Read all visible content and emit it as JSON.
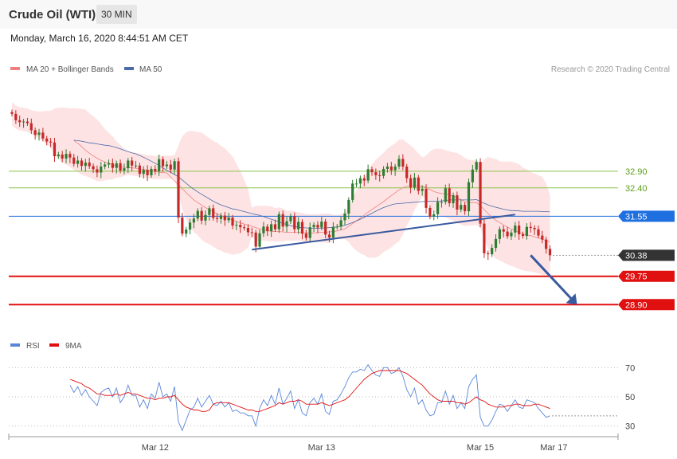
{
  "header": {
    "title": "Crude Oil (WTI)",
    "interval": "30 MIN"
  },
  "datetime": "Monday, March 16, 2020 8:44:51 AM CET",
  "legend": {
    "bollinger": "MA 20 + Bollinger Bands",
    "ma50": "MA 50",
    "copyright": "Research © 2020 Trading Central",
    "rsi": "RSI",
    "rsi_ma": "9MA"
  },
  "colors": {
    "up": "#2e7d32",
    "down": "#c62828",
    "band_fill": "#fde3e3",
    "ma20": "#f08080",
    "ma50": "#4a6aa8",
    "trendline": "#3a5aa0",
    "resistance": "#8bc34a",
    "pivot": "#1e6fe0",
    "support": "#e01010",
    "rsi": "#5a86d8",
    "rsi_ma": "#e01010",
    "current": "#333333"
  },
  "levels": [
    {
      "label": "32.90",
      "value": 32.9,
      "kind": "resistance"
    },
    {
      "label": "32.40",
      "value": 32.4,
      "kind": "resistance"
    },
    {
      "label": "31.55",
      "value": 31.55,
      "kind": "pivot"
    },
    {
      "label": "30.38",
      "value": 30.38,
      "kind": "current"
    },
    {
      "label": "29.75",
      "value": 29.75,
      "kind": "support"
    },
    {
      "label": "28.90",
      "value": 28.9,
      "kind": "support"
    }
  ],
  "xaxis": {
    "labels": [
      {
        "label": "Mar 12",
        "bar": 37
      },
      {
        "label": "Mar 13",
        "bar": 80
      },
      {
        "label": "Mar 15",
        "bar": 121
      },
      {
        "label": "Mar 17",
        "bar": 140
      }
    ]
  },
  "rsi_axis": {
    "ticks": [
      {
        "label": "70",
        "value": 70
      },
      {
        "label": "50",
        "value": 50
      },
      {
        "label": "30",
        "value": 30
      }
    ]
  },
  "chart_data": {
    "type": "candlestick",
    "instrument": "Crude Oil (WTI)",
    "timeframe": "30 MIN",
    "price_range": [
      28.5,
      35.0
    ],
    "close": [
      34.62,
      34.43,
      34.37,
      34.39,
      34.34,
      34.13,
      33.99,
      34.06,
      33.88,
      33.79,
      33.76,
      33.35,
      33.4,
      33.28,
      33.42,
      33.31,
      33.12,
      33.22,
      33.06,
      33.16,
      33.05,
      32.96,
      32.86,
      33.04,
      33.1,
      33.14,
      33.0,
      33.14,
      32.92,
      32.99,
      33.22,
      33.07,
      33.07,
      32.82,
      32.94,
      32.78,
      32.97,
      32.9,
      33.26,
      33.05,
      33.1,
      32.95,
      33.2,
      31.51,
      31.03,
      31.15,
      31.36,
      31.48,
      31.71,
      31.42,
      31.59,
      31.79,
      31.5,
      31.47,
      31.57,
      31.43,
      31.51,
      31.27,
      31.29,
      31.22,
      31.2,
      31.07,
      31.06,
      30.64,
      31.04,
      31.24,
      31.1,
      31.31,
      31.16,
      31.61,
      31.24,
      31.4,
      31.55,
      31.16,
      31.38,
      31.03,
      30.9,
      31.22,
      31.29,
      31.21,
      31.39,
      31.0,
      30.91,
      31.23,
      31.24,
      31.43,
      31.63,
      32.04,
      32.53,
      32.53,
      32.69,
      32.62,
      32.96,
      32.87,
      32.78,
      32.76,
      32.97,
      33.04,
      32.93,
      33.04,
      33.27,
      33.04,
      32.69,
      32.41,
      32.71,
      32.31,
      32.37,
      31.8,
      31.54,
      31.61,
      31.98,
      31.98,
      32.39,
      31.94,
      32.18,
      31.75,
      31.89,
      31.7,
      32.57,
      32.95,
      33.18,
      31.33,
      30.44,
      30.41,
      30.6,
      30.87,
      31.16,
      31.09,
      30.95,
      31.06,
      31.27,
      31.01,
      30.96,
      31.23,
      31.2,
      31.16,
      30.97,
      30.85,
      30.57,
      30.38
    ],
    "ma50_values": [
      null,
      null,
      null,
      null,
      null,
      null,
      null,
      null,
      null,
      null,
      null,
      null,
      null,
      null,
      null,
      null,
      33.83,
      33.82,
      33.8,
      33.78,
      33.75,
      33.74,
      33.72,
      33.7,
      33.68,
      33.67,
      33.64,
      33.61,
      33.57,
      33.53,
      33.49,
      33.45,
      33.42,
      33.37,
      33.32,
      33.26,
      33.2,
      33.14,
      33.07,
      33.0,
      32.93,
      32.87,
      32.8,
      32.73,
      32.64,
      32.54,
      32.44,
      32.36,
      32.28,
      32.21,
      32.14,
      32.07,
      32.0,
      31.94,
      31.89,
      31.85,
      31.81,
      31.77,
      31.75,
      31.72,
      31.69,
      31.66,
      31.63,
      31.6,
      31.58,
      31.54,
      31.5,
      31.46,
      31.42,
      31.38,
      31.34,
      31.3,
      31.27,
      31.24,
      31.22,
      31.21,
      31.2,
      31.19,
      31.19,
      31.19,
      31.19,
      31.2,
      31.21,
      31.22,
      31.23,
      31.25,
      31.28,
      31.32,
      31.36,
      31.41,
      31.46,
      31.52,
      31.58,
      31.64,
      31.7,
      31.76,
      31.81,
      31.85,
      31.89,
      31.92,
      31.93,
      31.94,
      31.95,
      31.96,
      31.97,
      31.98,
      31.99,
      32.0,
      32.0,
      32.0,
      32.0,
      32.01,
      32.02,
      32.04,
      32.04,
      32.04,
      32.04,
      32.04,
      32.04,
      32.04,
      32.05,
      31.98,
      31.94,
      31.89,
      31.85,
      31.82,
      31.79,
      31.76,
      31.74,
      31.72,
      31.72,
      31.71,
      31.7,
      31.7,
      31.7,
      31.7,
      31.7,
      31.69,
      31.69,
      31.68
    ],
    "ma20_values": [
      null,
      null,
      null,
      null,
      null,
      null,
      null,
      null,
      null,
      null,
      null,
      null,
      null,
      null,
      null,
      null,
      33.82,
      33.74,
      33.64,
      33.53,
      33.44,
      33.36,
      33.29,
      33.23,
      33.18,
      33.14,
      33.1,
      33.06,
      33.04,
      33.02,
      33.01,
      33.0,
      32.99,
      32.97,
      32.95,
      32.93,
      32.91,
      32.89,
      32.87,
      32.86,
      32.85,
      32.73,
      32.61,
      32.5,
      32.38,
      32.26,
      32.15,
      32.04,
      31.96,
      31.88,
      31.81,
      31.74,
      31.68,
      31.62,
      31.57,
      31.52,
      31.48,
      31.44,
      31.39,
      31.35,
      31.32,
      31.28,
      31.25,
      31.21,
      31.17,
      31.14,
      31.12,
      31.1,
      31.09,
      31.09,
      31.08,
      31.07,
      31.07,
      31.07,
      31.07,
      31.06,
      31.05,
      31.05,
      31.05,
      31.06,
      31.07,
      31.07,
      31.08,
      31.09,
      31.11,
      31.14,
      31.17,
      31.25,
      31.33,
      31.41,
      31.5,
      31.58,
      31.67,
      31.75,
      31.83,
      31.91,
      31.99,
      32.08,
      32.17,
      32.25,
      32.34,
      32.4,
      32.45,
      32.47,
      32.48,
      32.46,
      32.45,
      32.41,
      32.35,
      32.29,
      32.26,
      32.23,
      32.22,
      32.19,
      32.16,
      32.1,
      32.05,
      31.98,
      31.97,
      31.96,
      31.96,
      31.87,
      31.75,
      31.63,
      31.52,
      31.43,
      31.36,
      31.29,
      31.23,
      31.17,
      31.12,
      31.07,
      31.02,
      30.99,
      30.97,
      30.93,
      30.9,
      30.86,
      30.82,
      30.78
    ],
    "trendline": {
      "from": {
        "bar": 62,
        "price": 30.55
      },
      "to": {
        "bar": 130,
        "price": 31.6
      }
    },
    "projection_arrow": {
      "from": {
        "bar": 134,
        "price": 30.38
      },
      "to": {
        "bar": 146,
        "price": 28.9
      }
    },
    "rsi_values": [
      null,
      null,
      null,
      null,
      null,
      null,
      null,
      null,
      null,
      null,
      null,
      null,
      null,
      null,
      null,
      58,
      53,
      57,
      51,
      55,
      50,
      47,
      44,
      53,
      55,
      56,
      50,
      56,
      46,
      50,
      58,
      51,
      51,
      43,
      48,
      42,
      52,
      49,
      60,
      50,
      52,
      47,
      57,
      33,
      27,
      34,
      41,
      43,
      49,
      43,
      47,
      51,
      45,
      44,
      47,
      43,
      46,
      40,
      41,
      39,
      39,
      37,
      37,
      30,
      42,
      48,
      44,
      51,
      45,
      56,
      45,
      49,
      54,
      42,
      48,
      39,
      37,
      46,
      49,
      45,
      52,
      40,
      38,
      47,
      48,
      52,
      57,
      63,
      67,
      67,
      69,
      68,
      72,
      68,
      65,
      64,
      70,
      70,
      66,
      67,
      70,
      64,
      55,
      50,
      56,
      45,
      48,
      41,
      37,
      38,
      46,
      46,
      54,
      45,
      51,
      42,
      46,
      42,
      57,
      62,
      65,
      36,
      30,
      30,
      34,
      40,
      45,
      44,
      40,
      44,
      48,
      43,
      42,
      48,
      47,
      46,
      42,
      39,
      36,
      37
    ],
    "rsi_ma_values": [
      null,
      null,
      null,
      null,
      null,
      null,
      null,
      null,
      null,
      null,
      null,
      null,
      null,
      null,
      null,
      62,
      61,
      60,
      59,
      57,
      56,
      54,
      52,
      52,
      51,
      51,
      51,
      52,
      51,
      52,
      53,
      52,
      52,
      51,
      50,
      49,
      49,
      48,
      49,
      49,
      50,
      50,
      51,
      48,
      45,
      43,
      42,
      41,
      41,
      40,
      40,
      41,
      45,
      46,
      46,
      46,
      46,
      45,
      44,
      43,
      42,
      41,
      41,
      40,
      40,
      41,
      42,
      43,
      44,
      46,
      45,
      46,
      47,
      47,
      48,
      47,
      45,
      45,
      45,
      45,
      46,
      45,
      44,
      45,
      46,
      47,
      48,
      50,
      53,
      56,
      59,
      62,
      64,
      66,
      67,
      68,
      68,
      68,
      68,
      68,
      68,
      67,
      66,
      64,
      62,
      60,
      58,
      55,
      52,
      50,
      48,
      47,
      47,
      47,
      47,
      46,
      46,
      45,
      46,
      48,
      50,
      48,
      47,
      45,
      44,
      43,
      43,
      43,
      44,
      44,
      45,
      45,
      44,
      44,
      44,
      45,
      45,
      44,
      43,
      42
    ],
    "rsi_range": [
      20,
      80
    ]
  }
}
